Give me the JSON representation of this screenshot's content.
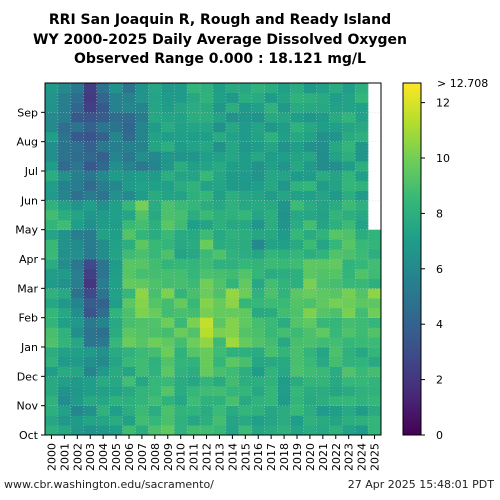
{
  "title_lines": [
    "RRI San Joaquin R, Rough and Ready Island",
    "WY 2000-2025 Daily Average Dissolved Oxygen",
    "Observed Range 0.000 : 18.121 mg/L"
  ],
  "footer": {
    "url": "www.cbr.washington.edu/sacramento/",
    "timestamp": "27 Apr 2025 15:48:01 PDT"
  },
  "chart_data": {
    "type": "heatmap",
    "x_categories": [
      "2000",
      "2001",
      "2002",
      "2003",
      "2004",
      "2005",
      "2006",
      "2007",
      "2008",
      "2009",
      "2010",
      "2011",
      "2012",
      "2013",
      "2014",
      "2015",
      "2016",
      "2017",
      "2018",
      "2019",
      "2020",
      "2021",
      "2022",
      "2023",
      "2024",
      "2025"
    ],
    "y_months": [
      "Oct",
      "Nov",
      "Dec",
      "Jan",
      "Feb",
      "Mar",
      "Apr",
      "May",
      "Jun",
      "Jul",
      "Aug",
      "Sep"
    ],
    "colorbar": {
      "colormap": "viridis",
      "min": 0,
      "max": 12.708,
      "ticks": [
        0,
        2,
        4,
        6,
        8,
        10,
        12
      ],
      "tick_labels": [
        "0",
        "2",
        "4",
        "6",
        "8",
        "10",
        "12"
      ],
      "top_label": "> 12.708"
    },
    "grid": true,
    "approx_monthly_values": [
      [
        7.8,
        7.4,
        7.6,
        8.6,
        8.0,
        7.4,
        8.0,
        8.4,
        7.2,
        6.4,
        6.6,
        6.8
      ],
      [
        6.8,
        6.6,
        7.2,
        7.8,
        7.4,
        6.6,
        6.6,
        8.0,
        6.2,
        5.2,
        5.0,
        5.4
      ],
      [
        6.6,
        6.8,
        7.2,
        6.8,
        5.6,
        5.2,
        5.8,
        6.6,
        5.2,
        4.4,
        4.2,
        4.6
      ],
      [
        6.8,
        7.2,
        6.6,
        4.4,
        3.2,
        2.8,
        5.0,
        6.4,
        5.0,
        4.0,
        3.6,
        2.6
      ],
      [
        7.4,
        7.2,
        6.4,
        5.2,
        4.8,
        5.6,
        6.8,
        6.6,
        5.4,
        4.6,
        4.2,
        4.0
      ],
      [
        7.4,
        7.6,
        7.4,
        8.2,
        7.8,
        7.2,
        7.0,
        7.2,
        6.2,
        5.6,
        5.2,
        5.8
      ],
      [
        8.0,
        8.2,
        7.8,
        9.0,
        8.8,
        9.2,
        8.6,
        8.2,
        6.4,
        5.0,
        4.8,
        5.2
      ],
      [
        8.2,
        8.0,
        8.2,
        9.8,
        10.6,
        9.6,
        8.8,
        9.6,
        7.0,
        5.8,
        5.6,
        6.4
      ],
      [
        8.6,
        8.0,
        8.6,
        9.2,
        9.0,
        8.8,
        8.2,
        8.4,
        7.2,
        6.6,
        6.8,
        7.0
      ],
      [
        8.8,
        8.8,
        9.2,
        9.6,
        9.4,
        9.0,
        8.4,
        8.6,
        7.6,
        7.4,
        7.2,
        7.4
      ],
      [
        8.0,
        8.2,
        8.8,
        9.2,
        9.0,
        8.6,
        8.2,
        8.4,
        7.8,
        7.4,
        7.4,
        7.6
      ],
      [
        8.2,
        8.0,
        8.6,
        9.4,
        9.2,
        8.4,
        7.6,
        7.8,
        7.6,
        7.2,
        7.4,
        7.8
      ],
      [
        8.0,
        8.2,
        9.0,
        11.2,
        10.4,
        9.4,
        9.2,
        8.2,
        7.8,
        7.6,
        7.6,
        7.8
      ],
      [
        8.2,
        8.4,
        8.8,
        9.4,
        9.2,
        8.8,
        8.4,
        8.2,
        7.4,
        7.2,
        7.2,
        7.4
      ],
      [
        8.0,
        8.2,
        8.8,
        10.4,
        10.0,
        8.6,
        8.0,
        8.4,
        7.4,
        7.0,
        7.0,
        7.4
      ],
      [
        8.2,
        7.8,
        8.4,
        9.0,
        9.2,
        8.8,
        8.4,
        7.8,
        7.2,
        6.8,
        7.0,
        7.2
      ],
      [
        7.8,
        7.6,
        7.8,
        8.4,
        8.2,
        7.6,
        6.8,
        7.2,
        6.8,
        6.8,
        7.0,
        7.4
      ],
      [
        7.6,
        7.8,
        8.2,
        8.6,
        8.4,
        8.2,
        8.0,
        7.8,
        7.6,
        7.4,
        7.4,
        7.6
      ],
      [
        7.4,
        7.2,
        7.8,
        8.2,
        8.2,
        7.8,
        7.4,
        7.2,
        7.0,
        6.8,
        6.8,
        7.2
      ],
      [
        7.8,
        8.0,
        8.4,
        8.6,
        8.8,
        8.8,
        8.4,
        8.2,
        7.6,
        7.6,
        7.8,
        8.2
      ],
      [
        7.8,
        8.2,
        8.6,
        9.4,
        9.6,
        9.4,
        8.6,
        8.2,
        7.8,
        7.2,
        7.2,
        7.4
      ],
      [
        7.6,
        7.8,
        8.2,
        9.0,
        9.2,
        8.8,
        8.2,
        8.0,
        7.4,
        7.0,
        7.0,
        7.2
      ],
      [
        7.8,
        8.0,
        8.4,
        9.2,
        9.4,
        9.4,
        8.6,
        8.2,
        7.4,
        7.0,
        7.0,
        7.4
      ],
      [
        7.8,
        8.2,
        8.6,
        9.2,
        9.4,
        8.8,
        8.6,
        8.4,
        8.0,
        7.8,
        7.6,
        7.6
      ],
      [
        7.6,
        7.8,
        8.4,
        9.2,
        9.4,
        8.8,
        8.4,
        8.0,
        7.6,
        7.4,
        7.4,
        7.6
      ],
      [
        7.6,
        7.8,
        8.4,
        9.0,
        9.8,
        8.6,
        7.6,
        null,
        null,
        null,
        null,
        null
      ]
    ]
  }
}
